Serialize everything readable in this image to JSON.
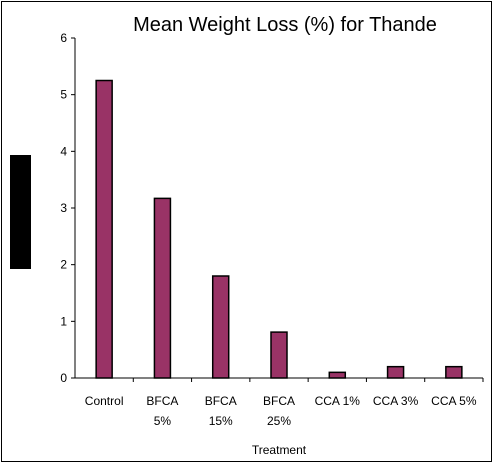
{
  "chart_data": {
    "type": "bar",
    "title": "Mean Weight Loss (%) for Thande",
    "xlabel": "Treatment",
    "ylabel": "",
    "categories": [
      [
        "Control"
      ],
      [
        "BFCA",
        "5%"
      ],
      [
        "BFCA",
        "15%"
      ],
      [
        "BFCA",
        "25%"
      ],
      [
        "CCA 1%"
      ],
      [
        "CCA 3%"
      ],
      [
        "CCA 5%"
      ]
    ],
    "values": [
      5.25,
      3.17,
      1.8,
      0.81,
      0.1,
      0.2,
      0.2
    ],
    "ylim": [
      0,
      6
    ],
    "yticks": [
      "0",
      "1",
      "2",
      "3",
      "4",
      "5",
      "6"
    ],
    "grid": false,
    "legend": "none",
    "colors": {
      "bar_fill": "#993366",
      "bar_stroke": "#000000"
    }
  }
}
